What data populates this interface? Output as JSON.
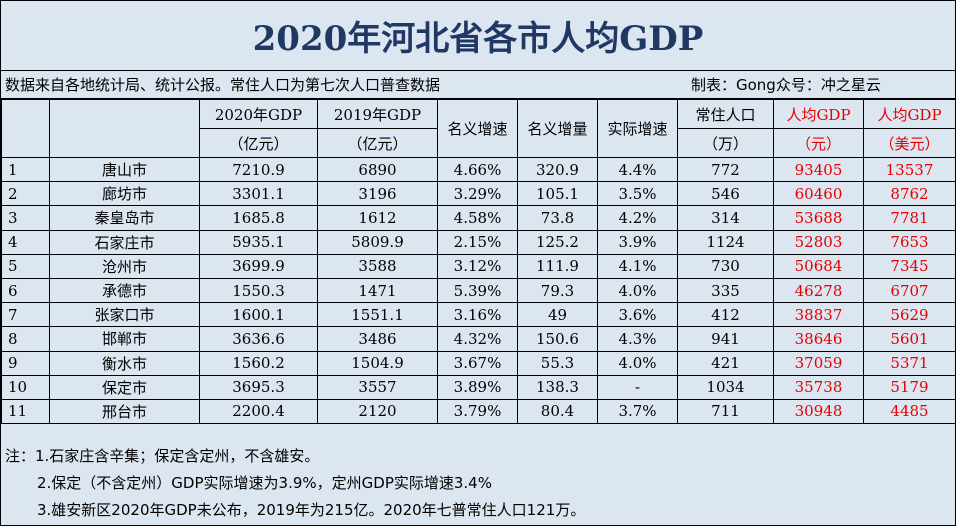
{
  "title": "2020年河北省各市人均GDP",
  "source": {
    "left": "数据来自各地统计局、统计公报。常住人口为第七次人口普查数据",
    "right": "制表：Gong众号：冲之星云"
  },
  "headers": {
    "gdp2020_a": "2020年GDP",
    "gdp2020_b": "（亿元）",
    "gdp2019_a": "2019年GDP",
    "gdp2019_b": "（亿元）",
    "nominal_growth": "名义增速",
    "nominal_increase": "名义增量",
    "real_growth": "实际增速",
    "pop_a": "常住人口",
    "pop_b": "（万）",
    "pc_yuan_a": "人均GDP",
    "pc_yuan_b": "（元）",
    "pc_usd_a": "人均GDP",
    "pc_usd_b": "（美元）"
  },
  "rows": [
    {
      "idx": "1",
      "city": "唐山市",
      "gdp2020": "7210.9",
      "gdp2019": "6890",
      "nominal": "4.66%",
      "increase": "320.9",
      "real": "4.4%",
      "pop": "772",
      "pc_yuan": "93405",
      "pc_usd": "13537"
    },
    {
      "idx": "2",
      "city": "廊坊市",
      "gdp2020": "3301.1",
      "gdp2019": "3196",
      "nominal": "3.29%",
      "increase": "105.1",
      "real": "3.5%",
      "pop": "546",
      "pc_yuan": "60460",
      "pc_usd": "8762"
    },
    {
      "idx": "3",
      "city": "秦皇岛市",
      "gdp2020": "1685.8",
      "gdp2019": "1612",
      "nominal": "4.58%",
      "increase": "73.8",
      "real": "4.2%",
      "pop": "314",
      "pc_yuan": "53688",
      "pc_usd": "7781"
    },
    {
      "idx": "4",
      "city": "石家庄市",
      "gdp2020": "5935.1",
      "gdp2019": "5809.9",
      "nominal": "2.15%",
      "increase": "125.2",
      "real": "3.9%",
      "pop": "1124",
      "pc_yuan": "52803",
      "pc_usd": "7653"
    },
    {
      "idx": "5",
      "city": "沧州市",
      "gdp2020": "3699.9",
      "gdp2019": "3588",
      "nominal": "3.12%",
      "increase": "111.9",
      "real": "4.1%",
      "pop": "730",
      "pc_yuan": "50684",
      "pc_usd": "7345"
    },
    {
      "idx": "6",
      "city": "承德市",
      "gdp2020": "1550.3",
      "gdp2019": "1471",
      "nominal": "5.39%",
      "increase": "79.3",
      "real": "4.0%",
      "pop": "335",
      "pc_yuan": "46278",
      "pc_usd": "6707"
    },
    {
      "idx": "7",
      "city": "张家口市",
      "gdp2020": "1600.1",
      "gdp2019": "1551.1",
      "nominal": "3.16%",
      "increase": "49",
      "real": "3.6%",
      "pop": "412",
      "pc_yuan": "38837",
      "pc_usd": "5629"
    },
    {
      "idx": "8",
      "city": "邯郸市",
      "gdp2020": "3636.6",
      "gdp2019": "3486",
      "nominal": "4.32%",
      "increase": "150.6",
      "real": "4.3%",
      "pop": "941",
      "pc_yuan": "38646",
      "pc_usd": "5601"
    },
    {
      "idx": "9",
      "city": "衡水市",
      "gdp2020": "1560.2",
      "gdp2019": "1504.9",
      "nominal": "3.67%",
      "increase": "55.3",
      "real": "4.0%",
      "pop": "421",
      "pc_yuan": "37059",
      "pc_usd": "5371"
    },
    {
      "idx": "10",
      "city": "保定市",
      "gdp2020": "3695.3",
      "gdp2019": "3557",
      "nominal": "3.89%",
      "increase": "138.3",
      "real": "-",
      "pop": "1034",
      "pc_yuan": "35738",
      "pc_usd": "5179"
    },
    {
      "idx": "11",
      "city": "邢台市",
      "gdp2020": "2200.4",
      "gdp2019": "2120",
      "nominal": "3.79%",
      "increase": "80.4",
      "real": "3.7%",
      "pop": "711",
      "pc_yuan": "30948",
      "pc_usd": "4485"
    }
  ],
  "notes": [
    "注：1.石家庄含辛集；保定含定州，不含雄安。",
    "2.保定（不含定州）GDP实际增速为3.9%，定州GDP实际增速3.4%",
    "3.雄安新区2020年GDP未公布，2019年为215亿。2020年七普常住人口121万。"
  ],
  "colors": {
    "title": "#1f3864",
    "highlight": "#e60000",
    "background": "#dce6f1"
  }
}
